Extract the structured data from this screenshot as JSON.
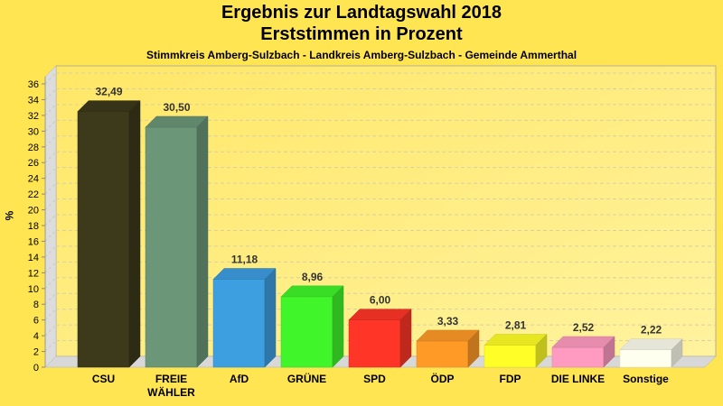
{
  "chart_data": {
    "type": "bar",
    "title": "Ergebnis zur Landtagswahl 2018",
    "subtitle": "Erststimmen in Prozent",
    "subsubtitle": "Stimmkreis Amberg-Sulzbach - Landkreis Amberg-Sulzbach - Gemeinde Ammerthal",
    "xlabel": "",
    "ylabel": "%",
    "ylim": [
      0,
      36
    ],
    "yticks": [
      0,
      2,
      4,
      6,
      8,
      10,
      12,
      14,
      16,
      18,
      20,
      22,
      24,
      26,
      28,
      30,
      32,
      34,
      36
    ],
    "grid": true,
    "style": "3d",
    "categories": [
      "CSU",
      "FREIE WÄHLER",
      "AfD",
      "GRÜNE",
      "SPD",
      "ÖDP",
      "FDP",
      "DIE LINKE",
      "Sonstige"
    ],
    "category_lines": [
      [
        "CSU"
      ],
      [
        "FREIE",
        "WÄHLER"
      ],
      [
        "AfD"
      ],
      [
        "GRÜNE"
      ],
      [
        "SPD"
      ],
      [
        "ÖDP"
      ],
      [
        "FDP"
      ],
      [
        "DIE LINKE"
      ],
      [
        "Sonstige"
      ]
    ],
    "values": [
      32.49,
      30.5,
      11.18,
      8.96,
      6.0,
      3.33,
      2.81,
      2.52,
      2.22
    ],
    "value_labels": [
      "32,49",
      "30,50",
      "11,18",
      "8,96",
      "6,00",
      "3,33",
      "2,81",
      "2,52",
      "2,22"
    ],
    "colors": [
      "#3d391b",
      "#6b9678",
      "#3d9ee0",
      "#40f52a",
      "#ff3527",
      "#ff9a27",
      "#ffff27",
      "#ff9bc0",
      "#fffff0"
    ]
  },
  "colors": {
    "background": "#ffe552",
    "plot_back": "#fff087",
    "wall": "#dcdcdc"
  }
}
